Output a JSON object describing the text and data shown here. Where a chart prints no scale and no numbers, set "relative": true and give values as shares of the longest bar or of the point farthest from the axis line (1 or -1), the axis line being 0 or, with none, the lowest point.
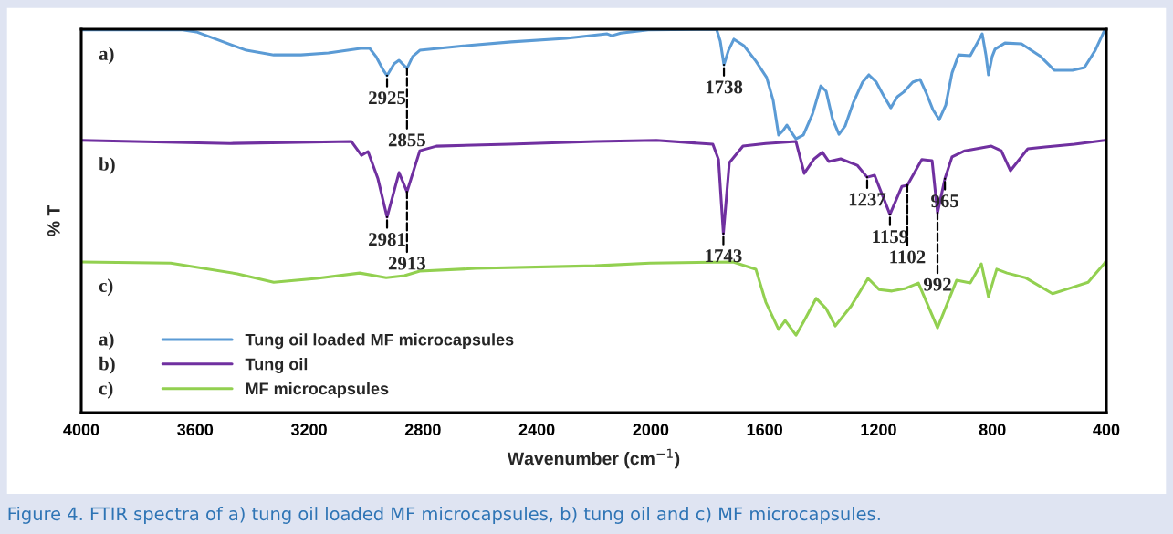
{
  "chart_data": {
    "type": "line",
    "relative": true,
    "xlabel": "Wavenumber (cm$^{−1}$)",
    "ylabel": "% T",
    "xlim": [
      4000,
      400
    ],
    "xticks": [
      4000,
      3600,
      3200,
      2800,
      2400,
      2000,
      1600,
      1200,
      800,
      400
    ],
    "grid": false,
    "legend": "bottom left",
    "marker": "none",
    "line_style": "solid",
    "series": [
      {
        "name": "Tung oil loaded MF microcapsules",
        "color": "#5b9bd5",
        "x": [
          4000,
          3644,
          3596,
          3516,
          3420,
          3324,
          3228,
          3132,
          3019,
          2987,
          2965,
          2939,
          2926,
          2901,
          2884,
          2862,
          2856,
          2836,
          2811,
          2682,
          2490,
          2298,
          2153,
          2137,
          2105,
          2009,
          1769,
          1756,
          1743,
          1727,
          1708,
          1673,
          1631,
          1593,
          1570,
          1551,
          1535,
          1522,
          1506,
          1490,
          1464,
          1432,
          1403,
          1384,
          1362,
          1339,
          1317,
          1288,
          1256,
          1234,
          1208,
          1182,
          1157,
          1134,
          1112,
          1080,
          1054,
          1031,
          1009,
          987,
          964,
          942,
          919,
          878,
          855,
          836,
          823,
          814,
          801,
          791,
          756,
          698,
          631,
          583,
          519,
          477,
          439,
          406,
          400
        ],
        "values": [
          0.998,
          0.998,
          0.993,
          0.971,
          0.945,
          0.933,
          0.933,
          0.938,
          0.95,
          0.95,
          0.929,
          0.893,
          0.879,
          0.91,
          0.919,
          0.902,
          0.898,
          0.929,
          0.945,
          0.955,
          0.967,
          0.976,
          0.988,
          0.983,
          0.99,
          0.998,
          1.0,
          0.969,
          0.907,
          0.945,
          0.974,
          0.957,
          0.917,
          0.874,
          0.814,
          0.724,
          0.736,
          0.75,
          0.731,
          0.714,
          0.724,
          0.779,
          0.852,
          0.838,
          0.767,
          0.726,
          0.748,
          0.81,
          0.862,
          0.881,
          0.862,
          0.826,
          0.795,
          0.824,
          0.836,
          0.862,
          0.869,
          0.831,
          0.79,
          0.764,
          0.802,
          0.886,
          0.933,
          0.931,
          0.962,
          0.988,
          0.933,
          0.881,
          0.929,
          0.948,
          0.964,
          0.962,
          0.929,
          0.893,
          0.893,
          0.9,
          0.945,
          0.998,
          1.0
        ]
      },
      {
        "name": "Tung oil",
        "color": "#7030a0",
        "x": [
          4000,
          3477,
          3051,
          3016,
          2993,
          2958,
          2926,
          2884,
          2856,
          2811,
          2753,
          2497,
          2195,
          1980,
          1782,
          1762,
          1745,
          1724,
          1676,
          1596,
          1490,
          1461,
          1426,
          1397,
          1375,
          1333,
          1275,
          1240,
          1214,
          1160,
          1118,
          1099,
          1048,
          1012,
          993,
          967,
          942,
          897,
          804,
          769,
          737,
          676,
          615,
          512,
          406,
          400
        ],
        "values": [
          0.71,
          0.702,
          0.707,
          0.671,
          0.681,
          0.61,
          0.51,
          0.626,
          0.576,
          0.683,
          0.695,
          0.7,
          0.707,
          0.71,
          0.7,
          0.66,
          0.467,
          0.652,
          0.695,
          0.702,
          0.707,
          0.624,
          0.662,
          0.679,
          0.655,
          0.662,
          0.645,
          0.614,
          0.619,
          0.517,
          0.59,
          0.593,
          0.66,
          0.657,
          0.521,
          0.61,
          0.667,
          0.683,
          0.695,
          0.683,
          0.631,
          0.688,
          0.693,
          0.7,
          0.71,
          0.714
        ]
      },
      {
        "name": "MF microcapsules",
        "color": "#92d050",
        "x": [
          4000,
          3686,
          3452,
          3324,
          3173,
          3022,
          2929,
          2865,
          2811,
          2615,
          2195,
          2003,
          1711,
          1631,
          1596,
          1551,
          1528,
          1490,
          1461,
          1419,
          1384,
          1352,
          1298,
          1237,
          1198,
          1153,
          1105,
          1060,
          993,
          926,
          878,
          839,
          814,
          785,
          749,
          685,
          589,
          522,
          464,
          406,
          400
        ],
        "values": [
          0.393,
          0.39,
          0.362,
          0.34,
          0.35,
          0.364,
          0.352,
          0.357,
          0.369,
          0.376,
          0.383,
          0.39,
          0.393,
          0.374,
          0.288,
          0.217,
          0.24,
          0.202,
          0.24,
          0.298,
          0.271,
          0.226,
          0.276,
          0.35,
          0.321,
          0.317,
          0.324,
          0.338,
          0.221,
          0.345,
          0.338,
          0.388,
          0.302,
          0.374,
          0.364,
          0.352,
          0.31,
          0.326,
          0.34,
          0.39,
          0.398
        ]
      }
    ],
    "annotations": [
      {
        "text": "2925",
        "x": 2926,
        "y": 0.879
      },
      {
        "text": "2855",
        "x": 2856,
        "y": 0.898
      },
      {
        "text": "1738",
        "x": 1743,
        "y": 0.907
      },
      {
        "text": "2981",
        "x": 2926,
        "y": 0.51
      },
      {
        "text": "2913",
        "x": 2856,
        "y": 0.576
      },
      {
        "text": "1743",
        "x": 1745,
        "y": 0.467
      },
      {
        "text": "1237",
        "x": 1240,
        "y": 0.614
      },
      {
        "text": "1159",
        "x": 1160,
        "y": 0.517
      },
      {
        "text": "1102",
        "x": 1099,
        "y": 0.593
      },
      {
        "text": "992",
        "x": 993,
        "y": 0.521
      },
      {
        "text": "965",
        "x": 967,
        "y": 0.61
      },
      "a)",
      "b)",
      "c)",
      "a)",
      "b)",
      "c)",
      "Figure 4. FTIR spectra of a) tung oil loaded MF microcapsules, b) tung oil and c) MF microcapsules."
    ]
  }
}
